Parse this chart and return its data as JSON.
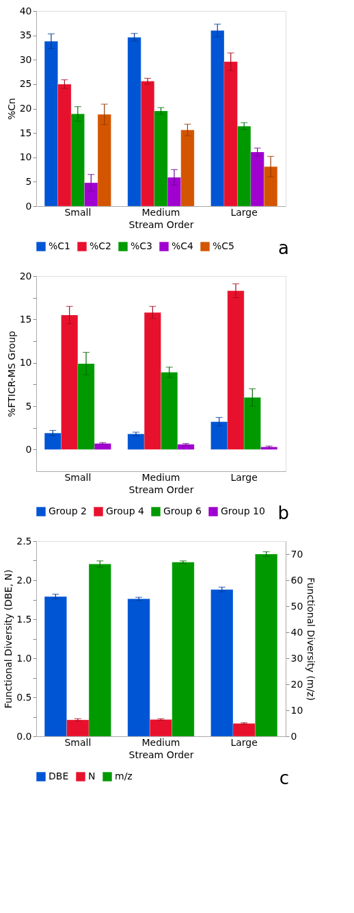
{
  "chart_data": [
    {
      "type": "bar",
      "categories": [
        "Small",
        "Medium",
        "Large"
      ],
      "xlabel": "Stream Order",
      "ylabel": "%Cn",
      "ylim": [
        0,
        40
      ],
      "yticks": [
        0,
        5,
        10,
        15,
        20,
        25,
        30,
        35,
        40
      ],
      "grid": false,
      "legend": "bottom",
      "annotations": [
        "a"
      ],
      "series": [
        {
          "name": "%C1",
          "color": "#0055d4",
          "values": [
            33.8,
            34.6,
            36.0
          ],
          "errors": [
            1.5,
            0.8,
            1.3
          ]
        },
        {
          "name": "%C2",
          "color": "#e8112d",
          "values": [
            25.0,
            25.6,
            29.6
          ],
          "errors": [
            0.9,
            0.6,
            1.8
          ]
        },
        {
          "name": "%C3",
          "color": "#009a00",
          "values": [
            18.9,
            19.5,
            16.4
          ],
          "errors": [
            1.5,
            0.7,
            0.7
          ]
        },
        {
          "name": "%C4",
          "color": "#a000d0",
          "values": [
            4.8,
            5.9,
            11.1
          ],
          "errors": [
            1.7,
            1.6,
            0.8
          ]
        },
        {
          "name": "%C5",
          "color": "#d45500",
          "values": [
            18.8,
            15.6,
            8.1
          ],
          "errors": [
            2.1,
            1.2,
            2.1
          ]
        }
      ]
    },
    {
      "type": "bar",
      "categories": [
        "Small",
        "Medium",
        "Large"
      ],
      "xlabel": "Stream Order",
      "ylabel": "%FTICR-MS Group",
      "ylim": [
        -2.5,
        20
      ],
      "yticks": [
        0,
        {
          "value": 2.5,
          "label": null
        },
        5,
        {
          "value": 7.5,
          "label": null
        },
        10,
        {
          "value": 12.5,
          "label": null
        },
        15,
        {
          "value": 17.5,
          "label": null
        },
        20
      ],
      "grid": false,
      "legend": "bottom",
      "annotations": [
        "b"
      ],
      "series": [
        {
          "name": "Group 2",
          "color": "#0055d4",
          "values": [
            1.9,
            1.8,
            3.2
          ],
          "errors": [
            0.3,
            0.2,
            0.5
          ]
        },
        {
          "name": "Group 4",
          "color": "#e8112d",
          "values": [
            15.5,
            15.8,
            18.3
          ],
          "errors": [
            1.0,
            0.7,
            0.8
          ]
        },
        {
          "name": "Group 6",
          "color": "#009a00",
          "values": [
            9.9,
            8.9,
            6.0
          ],
          "errors": [
            1.3,
            0.6,
            1.0
          ]
        },
        {
          "name": "Group 10",
          "color": "#a000d0",
          "values": [
            0.7,
            0.6,
            0.3
          ],
          "errors": [
            0.1,
            0.1,
            0.1
          ]
        }
      ]
    },
    {
      "type": "bar",
      "categories": [
        "Small",
        "Medium",
        "Large"
      ],
      "xlabel": "Stream Order",
      "ylabel": "Functional Diversity (DBE, N)",
      "y2label": "Functional Diversity (m/z)",
      "ylim": [
        0,
        2.5
      ],
      "yticks": [
        {
          "value": 0,
          "label": "0.0"
        },
        {
          "value": 0.25,
          "label": null
        },
        {
          "value": 0.5,
          "label": "0.5"
        },
        {
          "value": 0.75,
          "label": null
        },
        {
          "value": 1,
          "label": "1.0"
        },
        {
          "value": 1.25,
          "label": null
        },
        {
          "value": 1.5,
          "label": "1.5"
        },
        {
          "value": 1.75,
          "label": null
        },
        {
          "value": 2,
          "label": "2.0"
        },
        {
          "value": 2.25,
          "label": null
        },
        {
          "value": 2.5,
          "label": "2.5"
        }
      ],
      "y2lim": [
        0,
        75
      ],
      "y2ticks": [
        0,
        10,
        20,
        30,
        40,
        50,
        60,
        70
      ],
      "grid": false,
      "legend": "bottom",
      "annotations": [
        "c"
      ],
      "series": [
        {
          "name": "DBE",
          "color": "#0055d4",
          "values": [
            1.79,
            1.76,
            1.88
          ],
          "errors": [
            0.03,
            0.02,
            0.03
          ]
        },
        {
          "name": "N",
          "color": "#e8112d",
          "values": [
            0.21,
            0.215,
            0.165
          ],
          "errors": [
            0.015,
            0.01,
            0.01
          ]
        },
        {
          "name": "m/z",
          "color": "#009a00",
          "axis": "y2",
          "values": [
            66.2,
            66.9,
            70.0
          ],
          "errors": [
            1.2,
            0.5,
            0.9
          ]
        }
      ]
    }
  ]
}
